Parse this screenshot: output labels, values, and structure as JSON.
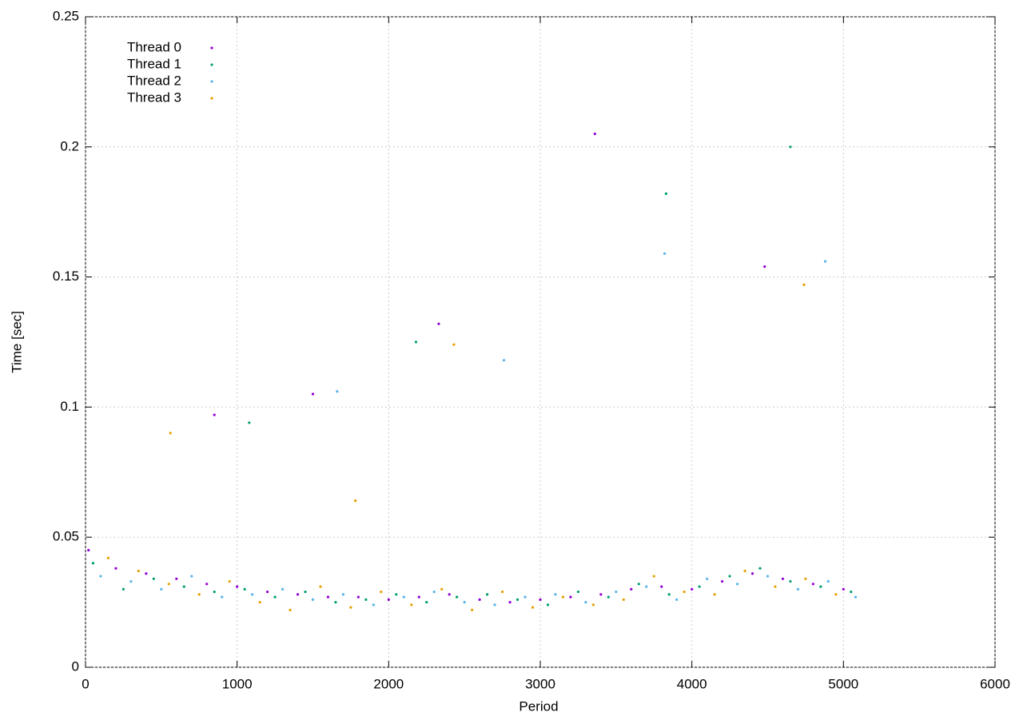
{
  "chart_data": {
    "type": "scatter",
    "xlabel": "Period",
    "ylabel": "Time [sec]",
    "xlim": [
      0,
      6000
    ],
    "xticks": [
      0,
      1000,
      2000,
      3000,
      4000,
      5000,
      6000
    ],
    "ylim": [
      0,
      0.25
    ],
    "yticks": [
      0,
      0.05,
      0.1,
      0.15,
      0.2,
      0.25
    ],
    "grid": true,
    "legend": "top-left",
    "series": [
      {
        "name": "Thread 0",
        "color": "#9400d3",
        "x": [
          20,
          200,
          400,
          600,
          800,
          1000,
          1200,
          1400,
          1600,
          1800,
          2000,
          2200,
          2400,
          2600,
          2800,
          3000,
          3200,
          3400,
          3600,
          3800,
          4000,
          4200,
          4400,
          4600,
          4800,
          5000,
          850,
          1500,
          2330,
          3360,
          4480
        ],
        "values": [
          0.045,
          0.038,
          0.036,
          0.034,
          0.032,
          0.031,
          0.029,
          0.028,
          0.027,
          0.027,
          0.026,
          0.027,
          0.028,
          0.026,
          0.025,
          0.026,
          0.027,
          0.028,
          0.03,
          0.031,
          0.03,
          0.033,
          0.036,
          0.034,
          0.032,
          0.03,
          0.097,
          0.105,
          0.132,
          0.205,
          0.154
        ]
      },
      {
        "name": "Thread 1",
        "color": "#009e73",
        "x": [
          50,
          250,
          450,
          650,
          850,
          1050,
          1250,
          1450,
          1650,
          1850,
          2050,
          2250,
          2450,
          2650,
          2850,
          3050,
          3250,
          3450,
          3650,
          3850,
          4050,
          4250,
          4450,
          4650,
          4850,
          5050,
          1080,
          2180,
          3830,
          4650
        ],
        "values": [
          0.04,
          0.03,
          0.034,
          0.031,
          0.029,
          0.03,
          0.027,
          0.029,
          0.025,
          0.026,
          0.028,
          0.025,
          0.027,
          0.028,
          0.026,
          0.024,
          0.029,
          0.027,
          0.032,
          0.028,
          0.031,
          0.035,
          0.038,
          0.033,
          0.031,
          0.029,
          0.094,
          0.125,
          0.182,
          0.2
        ]
      },
      {
        "name": "Thread 2",
        "color": "#56b4e9",
        "x": [
          100,
          300,
          500,
          700,
          900,
          1100,
          1300,
          1500,
          1700,
          1900,
          2100,
          2300,
          2500,
          2700,
          2900,
          3100,
          3300,
          3500,
          3700,
          3900,
          4100,
          4300,
          4500,
          4700,
          4900,
          5080,
          1660,
          2760,
          3820,
          4880
        ],
        "values": [
          0.035,
          0.033,
          0.03,
          0.035,
          0.027,
          0.028,
          0.03,
          0.026,
          0.028,
          0.024,
          0.027,
          0.029,
          0.025,
          0.024,
          0.027,
          0.028,
          0.025,
          0.029,
          0.031,
          0.026,
          0.034,
          0.032,
          0.035,
          0.03,
          0.033,
          0.027,
          0.106,
          0.118,
          0.159,
          0.156
        ]
      },
      {
        "name": "Thread 3",
        "color": "#e69f00",
        "x": [
          150,
          350,
          550,
          750,
          950,
          1150,
          1350,
          1550,
          1750,
          1950,
          2150,
          2350,
          2550,
          2750,
          2950,
          3150,
          3350,
          3550,
          3750,
          3950,
          4150,
          4350,
          4550,
          4750,
          4950,
          560,
          1780,
          2430,
          4740
        ],
        "values": [
          0.042,
          0.037,
          0.032,
          0.028,
          0.033,
          0.025,
          0.022,
          0.031,
          0.023,
          0.029,
          0.024,
          0.03,
          0.022,
          0.029,
          0.023,
          0.027,
          0.024,
          0.026,
          0.035,
          0.029,
          0.028,
          0.037,
          0.031,
          0.034,
          0.028,
          0.09,
          0.064,
          0.124,
          0.147
        ]
      }
    ]
  }
}
